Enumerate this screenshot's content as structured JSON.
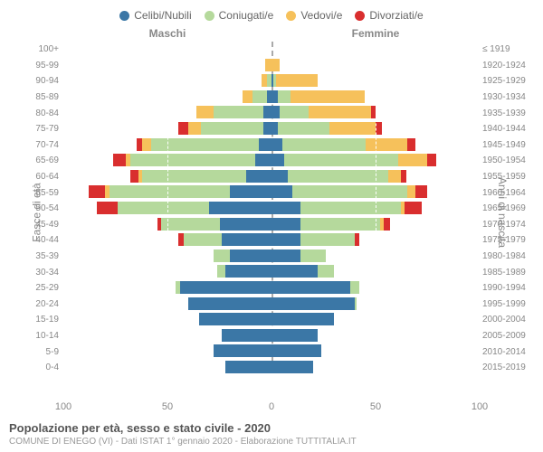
{
  "legend": [
    {
      "label": "Celibi/Nubili",
      "color": "#3b77a6"
    },
    {
      "label": "Coniugati/e",
      "color": "#b5d99c"
    },
    {
      "label": "Vedovi/e",
      "color": "#f6c15b"
    },
    {
      "label": "Divorziati/e",
      "color": "#d92e2e"
    }
  ],
  "header": {
    "male": "Maschi",
    "female": "Femmine"
  },
  "y_left_label": "Fasce di età",
  "y_right_label": "Anni di nascita",
  "x_max": 100,
  "x_ticks": [
    100,
    50,
    0,
    50,
    100
  ],
  "x_tick_labels": [
    "100",
    "50",
    "0",
    "50",
    "100"
  ],
  "colors": {
    "celibi": "#3b77a6",
    "coniugati": "#b5d99c",
    "vedovi": "#f6c15b",
    "divorziati": "#d92e2e",
    "grid": "#ffffff",
    "divider": "#aaaaaa",
    "bg": "#ffffff"
  },
  "title": "Popolazione per età, sesso e stato civile - 2020",
  "subtitle": "COMUNE DI ENEGO (VI) - Dati ISTAT 1° gennaio 2020 - Elaborazione TUTTITALIA.IT",
  "rows": [
    {
      "age": "100+",
      "year": "≤ 1919",
      "m": {
        "c": 0,
        "g": 0,
        "v": 0,
        "d": 0
      },
      "f": {
        "c": 0,
        "g": 0,
        "v": 0,
        "d": 0
      }
    },
    {
      "age": "95-99",
      "year": "1920-1924",
      "m": {
        "c": 0,
        "g": 0,
        "v": 3,
        "d": 0
      },
      "f": {
        "c": 0,
        "g": 0,
        "v": 4,
        "d": 0
      }
    },
    {
      "age": "90-94",
      "year": "1925-1929",
      "m": {
        "c": 0,
        "g": 2,
        "v": 3,
        "d": 0
      },
      "f": {
        "c": 1,
        "g": 1,
        "v": 20,
        "d": 0
      }
    },
    {
      "age": "85-89",
      "year": "1930-1934",
      "m": {
        "c": 2,
        "g": 7,
        "v": 5,
        "d": 0
      },
      "f": {
        "c": 3,
        "g": 6,
        "v": 36,
        "d": 0
      }
    },
    {
      "age": "80-84",
      "year": "1935-1939",
      "m": {
        "c": 4,
        "g": 24,
        "v": 8,
        "d": 0
      },
      "f": {
        "c": 4,
        "g": 14,
        "v": 30,
        "d": 2
      }
    },
    {
      "age": "75-79",
      "year": "1940-1944",
      "m": {
        "c": 4,
        "g": 30,
        "v": 6,
        "d": 5
      },
      "f": {
        "c": 3,
        "g": 25,
        "v": 22,
        "d": 3
      }
    },
    {
      "age": "70-74",
      "year": "1945-1949",
      "m": {
        "c": 6,
        "g": 52,
        "v": 4,
        "d": 3
      },
      "f": {
        "c": 5,
        "g": 40,
        "v": 20,
        "d": 4
      }
    },
    {
      "age": "65-69",
      "year": "1950-1954",
      "m": {
        "c": 8,
        "g": 60,
        "v": 2,
        "d": 6
      },
      "f": {
        "c": 6,
        "g": 55,
        "v": 14,
        "d": 4
      }
    },
    {
      "age": "60-64",
      "year": "1955-1959",
      "m": {
        "c": 12,
        "g": 50,
        "v": 2,
        "d": 4
      },
      "f": {
        "c": 8,
        "g": 48,
        "v": 6,
        "d": 3
      }
    },
    {
      "age": "55-59",
      "year": "1960-1964",
      "m": {
        "c": 20,
        "g": 58,
        "v": 2,
        "d": 8
      },
      "f": {
        "c": 10,
        "g": 55,
        "v": 4,
        "d": 6
      }
    },
    {
      "age": "50-54",
      "year": "1965-1969",
      "m": {
        "c": 30,
        "g": 44,
        "v": 0,
        "d": 10
      },
      "f": {
        "c": 14,
        "g": 48,
        "v": 2,
        "d": 8
      }
    },
    {
      "age": "45-49",
      "year": "1970-1974",
      "m": {
        "c": 25,
        "g": 28,
        "v": 0,
        "d": 2
      },
      "f": {
        "c": 14,
        "g": 38,
        "v": 2,
        "d": 3
      }
    },
    {
      "age": "40-44",
      "year": "1975-1979",
      "m": {
        "c": 24,
        "g": 18,
        "v": 0,
        "d": 3
      },
      "f": {
        "c": 14,
        "g": 26,
        "v": 0,
        "d": 2
      }
    },
    {
      "age": "35-39",
      "year": "1980-1984",
      "m": {
        "c": 20,
        "g": 8,
        "v": 0,
        "d": 0
      },
      "f": {
        "c": 14,
        "g": 12,
        "v": 0,
        "d": 0
      }
    },
    {
      "age": "30-34",
      "year": "1985-1989",
      "m": {
        "c": 22,
        "g": 4,
        "v": 0,
        "d": 0
      },
      "f": {
        "c": 22,
        "g": 8,
        "v": 0,
        "d": 0
      }
    },
    {
      "age": "25-29",
      "year": "1990-1994",
      "m": {
        "c": 44,
        "g": 2,
        "v": 0,
        "d": 0
      },
      "f": {
        "c": 38,
        "g": 4,
        "v": 0,
        "d": 0
      }
    },
    {
      "age": "20-24",
      "year": "1995-1999",
      "m": {
        "c": 40,
        "g": 0,
        "v": 0,
        "d": 0
      },
      "f": {
        "c": 40,
        "g": 1,
        "v": 0,
        "d": 0
      }
    },
    {
      "age": "15-19",
      "year": "2000-2004",
      "m": {
        "c": 35,
        "g": 0,
        "v": 0,
        "d": 0
      },
      "f": {
        "c": 30,
        "g": 0,
        "v": 0,
        "d": 0
      }
    },
    {
      "age": "10-14",
      "year": "2005-2009",
      "m": {
        "c": 24,
        "g": 0,
        "v": 0,
        "d": 0
      },
      "f": {
        "c": 22,
        "g": 0,
        "v": 0,
        "d": 0
      }
    },
    {
      "age": "5-9",
      "year": "2010-2014",
      "m": {
        "c": 28,
        "g": 0,
        "v": 0,
        "d": 0
      },
      "f": {
        "c": 24,
        "g": 0,
        "v": 0,
        "d": 0
      }
    },
    {
      "age": "0-4",
      "year": "2015-2019",
      "m": {
        "c": 22,
        "g": 0,
        "v": 0,
        "d": 0
      },
      "f": {
        "c": 20,
        "g": 0,
        "v": 0,
        "d": 0
      }
    }
  ]
}
